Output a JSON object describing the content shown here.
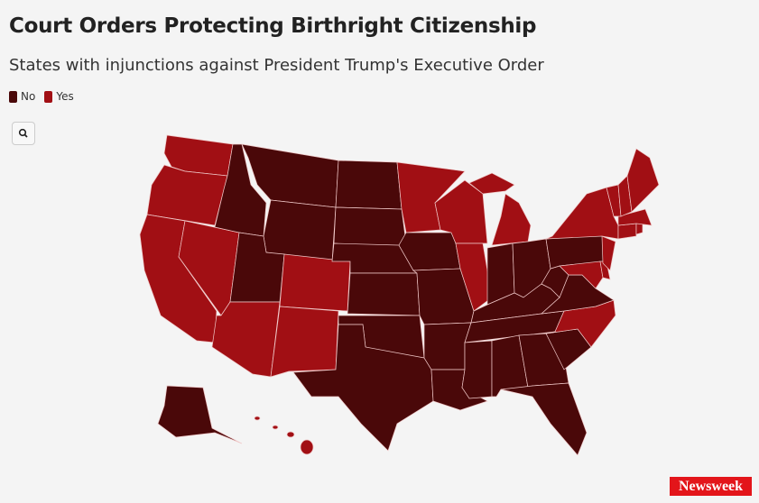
{
  "header": {
    "title": "Court Orders Protecting Birthright Citizenship",
    "subtitle": "States with injunctions against President Trump's Executive Order"
  },
  "legend": [
    {
      "label": "No",
      "color": "#4a0809"
    },
    {
      "label": "Yes",
      "color": "#a10f14"
    }
  ],
  "footer": {
    "logo": "Newsweek"
  }
}
